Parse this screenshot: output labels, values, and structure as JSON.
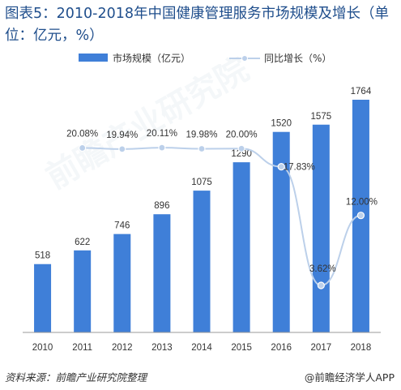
{
  "title": "图表5：2010-2018年中国健康管理服务市场规模及增长（单位：亿元，%）",
  "source": "资料来源：前瞻产业研究院整理",
  "brand": "@前瞻经济学人APP",
  "watermark": "前瞻产业研究院",
  "colors": {
    "bar": "#3f7fd8",
    "line": "#bcd0ea",
    "marker": "#bcd0ea",
    "marker_stroke": "#ffffff",
    "text": "#333333",
    "axis": "#999999"
  },
  "chart_data": {
    "type": "bar",
    "categories": [
      "2010",
      "2011",
      "2012",
      "2013",
      "2014",
      "2015",
      "2016",
      "2017",
      "2018"
    ],
    "series": [
      {
        "name": "市场规模（亿元）",
        "type": "bar",
        "values": [
          518,
          622,
          746,
          896,
          1075,
          1290,
          1520,
          1575,
          1764
        ],
        "labels": [
          "518",
          "622",
          "746",
          "896",
          "1075",
          "1290",
          "1520",
          "1575",
          "1764"
        ]
      },
      {
        "name": "同比增长（%）",
        "type": "line",
        "values": [
          20.08,
          19.94,
          20.11,
          19.98,
          20.0,
          17.83,
          3.62,
          12.0
        ],
        "x": [
          "2011",
          "2012",
          "2013",
          "2014",
          "2015",
          "2016",
          "2017",
          "2018"
        ],
        "labels": [
          "20.08%",
          "19.94%",
          "20.11%",
          "19.98%",
          "20.00%",
          "17.83%",
          "3.62%",
          "12.00%"
        ]
      }
    ],
    "legend_position": "top",
    "grid": false
  }
}
